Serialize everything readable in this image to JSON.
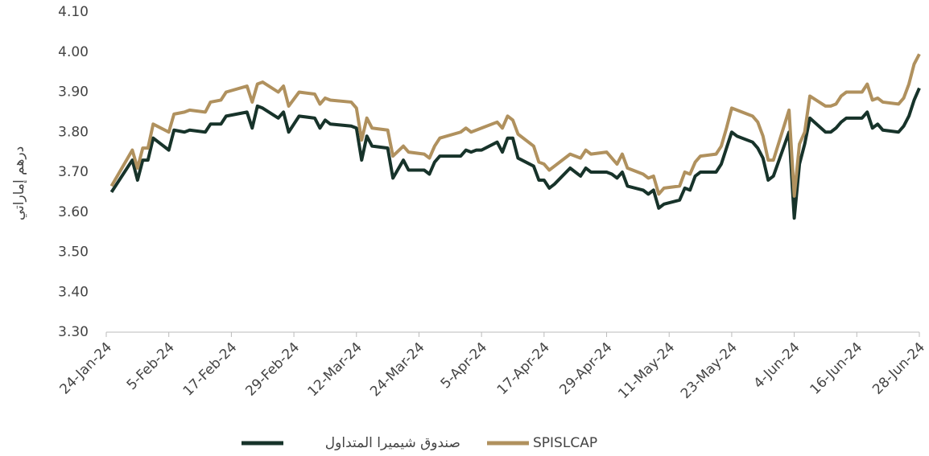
{
  "chart_data": {
    "type": "line",
    "y_label": "درهم إماراتي",
    "x": [
      "2024-01-25",
      "2024-01-29",
      "2024-01-30",
      "2024-01-31",
      "2024-02-01",
      "2024-02-02",
      "2024-02-05",
      "2024-02-06",
      "2024-02-08",
      "2024-02-09",
      "2024-02-12",
      "2024-02-13",
      "2024-02-15",
      "2024-02-16",
      "2024-02-20",
      "2024-02-21",
      "2024-02-22",
      "2024-02-23",
      "2024-02-26",
      "2024-02-27",
      "2024-02-28",
      "2024-03-01",
      "2024-03-04",
      "2024-03-05",
      "2024-03-06",
      "2024-03-07",
      "2024-03-11",
      "2024-03-12",
      "2024-03-13",
      "2024-03-14",
      "2024-03-15",
      "2024-03-18",
      "2024-03-19",
      "2024-03-21",
      "2024-03-22",
      "2024-03-25",
      "2024-03-26",
      "2024-03-27",
      "2024-03-28",
      "2024-04-01",
      "2024-04-02",
      "2024-04-03",
      "2024-04-04",
      "2024-04-05",
      "2024-04-08",
      "2024-04-09",
      "2024-04-10",
      "2024-04-11",
      "2024-04-12",
      "2024-04-15",
      "2024-04-16",
      "2024-04-17",
      "2024-04-18",
      "2024-04-19",
      "2024-04-22",
      "2024-04-24",
      "2024-04-25",
      "2024-04-26",
      "2024-04-29",
      "2024-04-30",
      "2024-05-01",
      "2024-05-02",
      "2024-05-03",
      "2024-05-06",
      "2024-05-07",
      "2024-05-08",
      "2024-05-09",
      "2024-05-10",
      "2024-05-13",
      "2024-05-14",
      "2024-05-15",
      "2024-05-16",
      "2024-05-17",
      "2024-05-20",
      "2024-05-21",
      "2024-05-22",
      "2024-05-23",
      "2024-05-24",
      "2024-05-27",
      "2024-05-28",
      "2024-05-29",
      "2024-05-30",
      "2024-05-31",
      "2024-06-03",
      "2024-06-04",
      "2024-06-05",
      "2024-06-06",
      "2024-06-07",
      "2024-06-10",
      "2024-06-11",
      "2024-06-12",
      "2024-06-13",
      "2024-06-14",
      "2024-06-17",
      "2024-06-18",
      "2024-06-19",
      "2024-06-20",
      "2024-06-21",
      "2024-06-24",
      "2024-06-25",
      "2024-06-26",
      "2024-06-27",
      "2024-06-28"
    ],
    "series": [
      {
        "name": "صندوق شيميرا المتداول",
        "color": "#17332a",
        "values": [
          3.65,
          3.73,
          3.68,
          3.73,
          3.73,
          3.785,
          3.755,
          3.805,
          3.8,
          3.805,
          3.8,
          3.82,
          3.82,
          3.84,
          3.85,
          3.81,
          3.865,
          3.86,
          3.835,
          3.85,
          3.8,
          3.84,
          3.835,
          3.81,
          3.83,
          3.82,
          3.815,
          3.81,
          3.73,
          3.79,
          3.765,
          3.76,
          3.685,
          3.73,
          3.705,
          3.705,
          3.695,
          3.725,
          3.74,
          3.74,
          3.755,
          3.75,
          3.755,
          3.755,
          3.775,
          3.75,
          3.785,
          3.785,
          3.735,
          3.715,
          3.68,
          3.68,
          3.66,
          3.67,
          3.71,
          3.69,
          3.71,
          3.7,
          3.7,
          3.695,
          3.685,
          3.7,
          3.665,
          3.655,
          3.645,
          3.655,
          3.61,
          3.62,
          3.63,
          3.66,
          3.655,
          3.69,
          3.7,
          3.7,
          3.72,
          3.76,
          3.8,
          3.79,
          3.775,
          3.76,
          3.735,
          3.68,
          3.69,
          3.8,
          3.585,
          3.72,
          3.77,
          3.835,
          3.8,
          3.8,
          3.81,
          3.825,
          3.835,
          3.835,
          3.85,
          3.81,
          3.82,
          3.805,
          3.8,
          3.815,
          3.84,
          3.88,
          3.91
        ]
      },
      {
        "name": "SPISLCAP",
        "color": "#b0915e",
        "values": [
          3.665,
          3.755,
          3.71,
          3.76,
          3.76,
          3.82,
          3.8,
          3.845,
          3.85,
          3.855,
          3.85,
          3.875,
          3.88,
          3.9,
          3.915,
          3.875,
          3.92,
          3.925,
          3.9,
          3.915,
          3.865,
          3.9,
          3.895,
          3.87,
          3.885,
          3.88,
          3.875,
          3.86,
          3.78,
          3.835,
          3.81,
          3.805,
          3.74,
          3.765,
          3.75,
          3.745,
          3.735,
          3.765,
          3.785,
          3.8,
          3.81,
          3.8,
          3.805,
          3.81,
          3.825,
          3.81,
          3.84,
          3.83,
          3.795,
          3.765,
          3.725,
          3.72,
          3.705,
          3.715,
          3.745,
          3.735,
          3.755,
          3.745,
          3.75,
          3.735,
          3.72,
          3.745,
          3.71,
          3.695,
          3.685,
          3.69,
          3.645,
          3.66,
          3.665,
          3.7,
          3.695,
          3.725,
          3.74,
          3.745,
          3.765,
          3.81,
          3.86,
          3.855,
          3.84,
          3.825,
          3.79,
          3.73,
          3.73,
          3.855,
          3.64,
          3.77,
          3.8,
          3.89,
          3.865,
          3.865,
          3.87,
          3.89,
          3.9,
          3.9,
          3.92,
          3.88,
          3.885,
          3.875,
          3.87,
          3.885,
          3.92,
          3.97,
          3.995
        ]
      }
    ],
    "xlim": [
      "2024-01-24",
      "2024-06-28"
    ],
    "xticks": [
      {
        "value": "2024-01-24",
        "label": "24-Jan-24"
      },
      {
        "value": "2024-02-05",
        "label": "5-Feb-24"
      },
      {
        "value": "2024-02-17",
        "label": "17-Feb-24"
      },
      {
        "value": "2024-02-29",
        "label": "29-Feb-24"
      },
      {
        "value": "2024-03-12",
        "label": "12-Mar-24"
      },
      {
        "value": "2024-03-24",
        "label": "24-Mar-24"
      },
      {
        "value": "2024-04-05",
        "label": "5-Apr-24"
      },
      {
        "value": "2024-04-17",
        "label": "17-Apr-24"
      },
      {
        "value": "2024-04-29",
        "label": "29-Apr-24"
      },
      {
        "value": "2024-05-11",
        "label": "11-May-24"
      },
      {
        "value": "2024-05-23",
        "label": "23-May-24"
      },
      {
        "value": "2024-06-04",
        "label": "4-Jun-24"
      },
      {
        "value": "2024-06-16",
        "label": "16-Jun-24"
      },
      {
        "value": "2024-06-28",
        "label": "28-Jun-24"
      }
    ],
    "ylim": [
      3.3,
      4.1
    ],
    "yticks": [
      {
        "value": 3.3,
        "label": "3.30"
      },
      {
        "value": 3.4,
        "label": "3.40"
      },
      {
        "value": 3.5,
        "label": "3.50"
      },
      {
        "value": 3.6,
        "label": "3.60"
      },
      {
        "value": 3.7,
        "label": "3.70"
      },
      {
        "value": 3.8,
        "label": "3.80"
      },
      {
        "value": 3.9,
        "label": "3.90"
      },
      {
        "value": 4.0,
        "label": "4.00"
      },
      {
        "value": 4.1,
        "label": "4.10"
      }
    ],
    "grid": false,
    "legend": "bottom"
  }
}
